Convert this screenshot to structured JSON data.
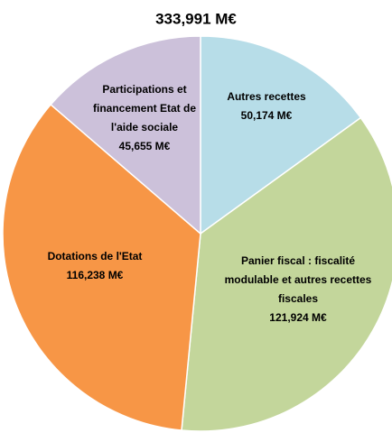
{
  "chart_data": {
    "type": "pie",
    "title": "333,991 M€",
    "categories": [
      "Autres recettes",
      "Panier fiscal : fiscalité modulable et autres recettes fiscales",
      "Dotations de l'Etat",
      "Participations et financement Etat de l'aide sociale"
    ],
    "values": [
      50.174,
      121.924,
      116.238,
      45.655
    ],
    "value_labels": [
      "50,174 M€",
      "121,924 M€",
      "116,238 M€",
      "45,655 M€"
    ],
    "colors": [
      "#b7dde8",
      "#c3d69b",
      "#f79646",
      "#ccc1da"
    ]
  }
}
